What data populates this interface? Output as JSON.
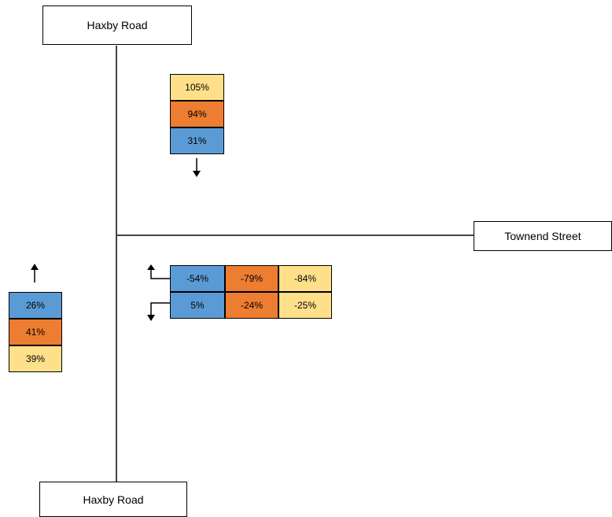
{
  "colors": {
    "blue": "#5b9bd5",
    "orange": "#ed7d31",
    "yellow": "#ffe08a"
  },
  "roads": {
    "north": "Haxby Road",
    "south": "Haxby Road",
    "east": "Townend Street"
  },
  "north_stack": {
    "direction": "down",
    "values": [
      "105%",
      "94%",
      "31%"
    ],
    "colors": [
      "yellow",
      "orange",
      "blue"
    ]
  },
  "west_stack": {
    "direction": "up",
    "values": [
      "26%",
      "41%",
      "39%"
    ],
    "colors": [
      "blue",
      "orange",
      "yellow"
    ]
  },
  "east_grid": {
    "rows": [
      {
        "direction": "left-up",
        "values": [
          "-54%",
          "-79%",
          "-84%"
        ],
        "colors": [
          "blue",
          "orange",
          "yellow"
        ]
      },
      {
        "direction": "left-down",
        "values": [
          "5%",
          "-24%",
          "-25%"
        ],
        "colors": [
          "blue",
          "orange",
          "yellow"
        ]
      }
    ]
  }
}
